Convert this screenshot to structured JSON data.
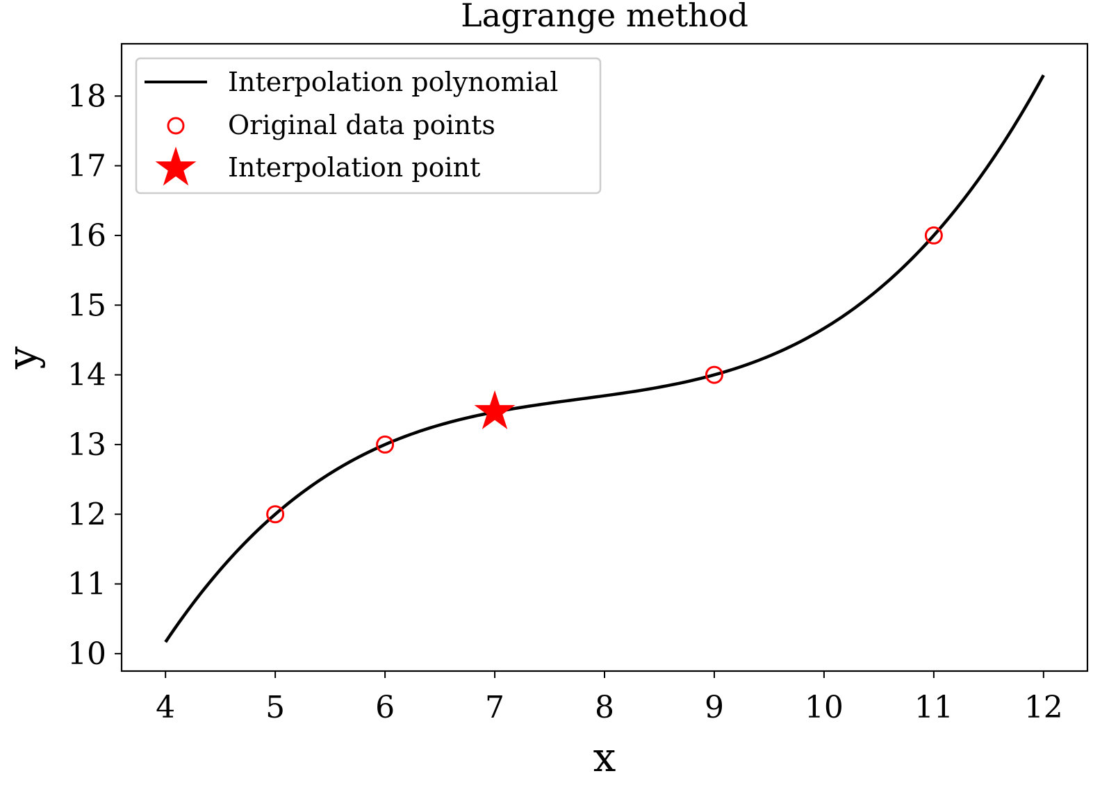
{
  "chart_data": {
    "type": "line",
    "title": "Lagrange method",
    "xlabel": "x",
    "ylabel": "y",
    "xlim": [
      3.6,
      12.4
    ],
    "ylim": [
      9.75,
      18.75
    ],
    "xticks": [
      4,
      5,
      6,
      7,
      8,
      9,
      10,
      11,
      12
    ],
    "yticks": [
      10,
      11,
      12,
      13,
      14,
      15,
      16,
      17,
      18
    ],
    "grid": false,
    "legend": {
      "position": "top-left",
      "entries": [
        {
          "label": "Interpolation polynomial",
          "marker": "line",
          "color": "#000000"
        },
        {
          "label": "Original data points",
          "marker": "open-circle",
          "color": "#ff0000"
        },
        {
          "label": "Interpolation point",
          "marker": "star",
          "color": "#ff0000"
        }
      ]
    },
    "series": [
      {
        "name": "Interpolation polynomial",
        "kind": "line",
        "color": "#000000",
        "x_range": [
          4,
          12
        ],
        "polynomial_through": {
          "x": [
            5,
            6,
            9,
            11
          ],
          "y": [
            12,
            13,
            14,
            16
          ]
        }
      },
      {
        "name": "Original data points",
        "kind": "scatter",
        "marker": "open-circle",
        "color": "#ff0000",
        "x": [
          5,
          6,
          9,
          11
        ],
        "y": [
          12,
          13,
          14,
          16
        ]
      },
      {
        "name": "Interpolation point",
        "kind": "scatter",
        "marker": "star",
        "color": "#ff0000",
        "x": [
          7
        ],
        "y": [
          13.47
        ]
      }
    ]
  }
}
